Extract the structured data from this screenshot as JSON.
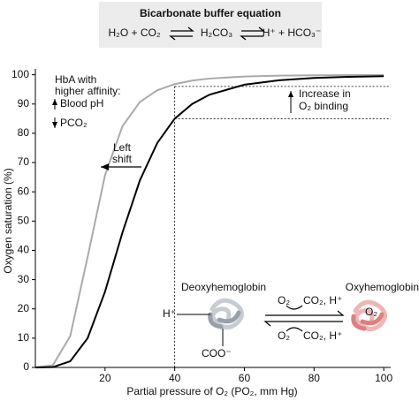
{
  "chart_data": {
    "type": "line",
    "title": "Bicarbonate buffer equation",
    "equation": [
      "H₂O + CO₂",
      "H₂CO₃",
      "H⁺ + HCO₃⁻"
    ],
    "x_label": "Partial pressure of O₂ (PO₂, mm Hg)",
    "y_label": "Oxygen saturation (%)",
    "x": [
      0,
      5,
      10,
      15,
      20,
      25,
      30,
      35,
      40,
      45,
      50,
      60,
      70,
      80,
      90,
      100
    ],
    "series": [
      {
        "color": "#aaaaaa",
        "values": [
          0,
          0.7,
          10.7,
          37.7,
          65.7,
          82.4,
          90.7,
          94.7,
          96.8,
          98.0,
          98.7,
          99.4,
          99.7,
          99.8,
          99.9,
          99.9
        ]
      },
      {
        "color": "#000000",
        "values": [
          0,
          0.1,
          2.1,
          10.0,
          25.9,
          46.1,
          63.9,
          76.7,
          85.0,
          90.0,
          93.2,
          96.6,
          98.1,
          98.9,
          99.3,
          99.5
        ]
      }
    ],
    "xlim": [
      0,
      102
    ],
    "ylim": [
      0,
      102
    ],
    "xticks": [
      20,
      40,
      60,
      80,
      100
    ],
    "yticks": [
      0,
      10,
      20,
      30,
      40,
      50,
      60,
      70,
      80,
      90,
      100
    ],
    "reference_lines": {
      "x": 40,
      "y": [
        96,
        85
      ]
    },
    "annotations": {
      "affinity": [
        "HbA with",
        "higher affinity:"
      ],
      "blood_ph": "Blood pH",
      "pco2": "PCO₂",
      "left_shift": [
        "Left",
        "shift"
      ],
      "increase": [
        "Increase in",
        "O₂ binding"
      ],
      "deoxy": "Deoxyhemoglobin",
      "oxy": "Oxyhemoglobin",
      "h_plus": "H⁺",
      "coo": "COO⁻",
      "oxy_o2": "O₂",
      "o2_top": "O₂",
      "co2_top": "CO₂, H⁺",
      "o2_bottom": "O₂",
      "co2_bottom": "CO₂, H⁺"
    }
  }
}
